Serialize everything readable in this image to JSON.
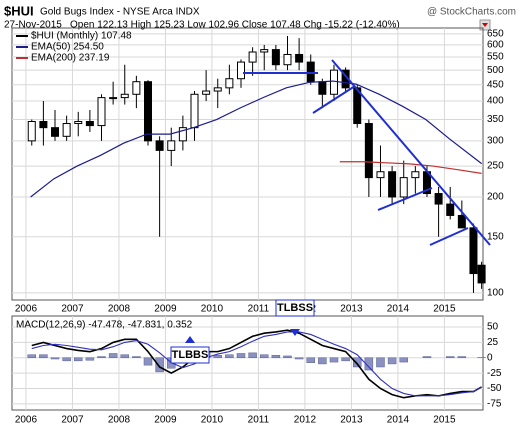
{
  "header": {
    "symbol": "$HUI",
    "name": "Gold Bugs Index - NYSE Arca INDX",
    "source": "@ StockCharts.com",
    "date": "27-Nov-2015",
    "quote": "Open 122.13  High 125.23  Low 102.96  Close 107.48  Chg -15.22 (-12.40%)"
  },
  "chart_data": [
    {
      "type": "candlestick",
      "log_scale": true,
      "grid": true,
      "xlim": [
        2005.7,
        2015.83
      ],
      "xticks": [
        2006,
        2007,
        2008,
        2009,
        2010,
        2011,
        2012,
        2013,
        2014,
        2015
      ],
      "ylim": [
        95,
        678
      ],
      "yticks": [
        100,
        150,
        200,
        250,
        300,
        350,
        400,
        450,
        500,
        550,
        600,
        650
      ],
      "series": [
        {
          "name": "$HUI (Monthly) 107.48",
          "color": "#000000",
          "x": [
            2006.125,
            2006.375,
            2006.625,
            2006.875,
            2007.125,
            2007.375,
            2007.625,
            2007.875,
            2008.125,
            2008.375,
            2008.625,
            2008.875,
            2009.125,
            2009.375,
            2009.625,
            2009.875,
            2010.125,
            2010.375,
            2010.625,
            2010.875,
            2011.125,
            2011.375,
            2011.625,
            2011.875,
            2012.125,
            2012.375,
            2012.625,
            2012.875,
            2013.125,
            2013.375,
            2013.625,
            2013.875,
            2014.125,
            2014.375,
            2014.625,
            2014.875,
            2015.125,
            2015.375,
            2015.625,
            2015.8
          ],
          "open": [
            300,
            345,
            330,
            310,
            340,
            345,
            335,
            410,
            410,
            420,
            460,
            300,
            280,
            300,
            330,
            420,
            430,
            440,
            470,
            530,
            570,
            580,
            520,
            560,
            530,
            460,
            420,
            500,
            440,
            340,
            230,
            240,
            200,
            230,
            240,
            205,
            190,
            175,
            160,
            122.13
          ],
          "high": [
            350,
            400,
            375,
            360,
            370,
            375,
            420,
            460,
            520,
            480,
            465,
            310,
            330,
            360,
            430,
            500,
            470,
            520,
            540,
            590,
            600,
            600,
            640,
            630,
            560,
            470,
            520,
            510,
            450,
            350,
            290,
            250,
            260,
            250,
            250,
            215,
            215,
            195,
            165,
            125.23
          ],
          "low": [
            290,
            290,
            300,
            300,
            310,
            320,
            300,
            390,
            390,
            380,
            290,
            150,
            250,
            280,
            300,
            400,
            380,
            420,
            440,
            480,
            500,
            500,
            500,
            500,
            450,
            380,
            400,
            430,
            330,
            200,
            200,
            190,
            190,
            205,
            200,
            150,
            170,
            160,
            100,
            102.96
          ],
          "close": [
            345,
            330,
            310,
            340,
            345,
            335,
            410,
            410,
            420,
            460,
            300,
            280,
            300,
            330,
            420,
            430,
            440,
            470,
            530,
            570,
            580,
            520,
            560,
            530,
            460,
            420,
            500,
            440,
            340,
            230,
            240,
            200,
            230,
            240,
            205,
            190,
            175,
            160,
            115,
            107.48
          ]
        }
      ],
      "overlays": [
        {
          "name": "EMA(50) 254.50",
          "color": "#1c1c8c",
          "x": [
            2006.1,
            2006.6,
            2007.1,
            2007.6,
            2008.1,
            2008.6,
            2009.1,
            2009.6,
            2010.1,
            2010.6,
            2011.1,
            2011.6,
            2012.1,
            2012.6,
            2013.1,
            2013.6,
            2014.1,
            2014.6,
            2015.1,
            2015.8
          ],
          "values": [
            200,
            228,
            250,
            270,
            295,
            315,
            315,
            330,
            350,
            380,
            410,
            440,
            458,
            462,
            452,
            420,
            385,
            350,
            305,
            254.5
          ]
        },
        {
          "name": "EMA(200) 237.19",
          "color": "#c03030",
          "x": [
            2012.75,
            2013.25,
            2013.75,
            2014.25,
            2014.75,
            2015.25,
            2015.8
          ],
          "values": [
            258,
            258,
            256,
            254,
            250,
            244,
            237.19
          ]
        }
      ]
    },
    {
      "type": "macd",
      "legend": "MACD(12,26,9) -47.478, -47.831, 0.352",
      "grid": true,
      "xlim": [
        2005.7,
        2015.83
      ],
      "xticks": [
        2006,
        2007,
        2008,
        2009,
        2010,
        2011,
        2012,
        2013,
        2014,
        2015
      ],
      "ylim": [
        -85,
        68
      ],
      "yticks": [
        50,
        25,
        0,
        -25,
        -50,
        -75
      ],
      "x": [
        2006.125,
        2006.375,
        2006.625,
        2006.875,
        2007.125,
        2007.375,
        2007.625,
        2007.875,
        2008.125,
        2008.375,
        2008.625,
        2008.875,
        2009.125,
        2009.375,
        2009.625,
        2009.875,
        2010.125,
        2010.375,
        2010.625,
        2010.875,
        2011.125,
        2011.375,
        2011.625,
        2011.875,
        2012.125,
        2012.375,
        2012.625,
        2012.875,
        2013.125,
        2013.375,
        2013.625,
        2013.875,
        2014.125,
        2014.375,
        2014.625,
        2014.875,
        2015.125,
        2015.375,
        2015.625,
        2015.8
      ],
      "series": [
        {
          "color": "#000000",
          "values": [
            20,
            25,
            20,
            15,
            12,
            10,
            15,
            25,
            30,
            30,
            10,
            -15,
            -25,
            -15,
            0,
            10,
            10,
            15,
            25,
            35,
            40,
            42,
            45,
            40,
            30,
            20,
            15,
            10,
            -10,
            -35,
            -50,
            -60,
            -65,
            -62,
            -60,
            -62,
            -58,
            -55,
            -55,
            -47.478
          ]
        },
        {
          "color": "#3030c0",
          "values": [
            15,
            20,
            22,
            20,
            17,
            14,
            13,
            18,
            25,
            28,
            22,
            8,
            -8,
            -16,
            -10,
            0,
            6,
            10,
            18,
            27,
            35,
            38,
            42,
            42,
            38,
            30,
            22,
            15,
            5,
            -15,
            -35,
            -50,
            -58,
            -62,
            -62,
            -62,
            -60,
            -57,
            -55,
            -47.831
          ]
        }
      ],
      "histogram": {
        "color": "#8a90c0",
        "values": [
          5,
          5,
          -2,
          -5,
          -5,
          -4,
          2,
          7,
          5,
          2,
          -12,
          -23,
          -17,
          1,
          10,
          10,
          4,
          5,
          7,
          8,
          5,
          4,
          3,
          -2,
          -8,
          -10,
          -7,
          -5,
          -15,
          -20,
          -15,
          -10,
          -7,
          0,
          2,
          0,
          2,
          2,
          0,
          0.352
        ]
      },
      "annotations": [
        {
          "text": "TLBSS"
        },
        {
          "text": "TLBBS"
        }
      ]
    }
  ]
}
